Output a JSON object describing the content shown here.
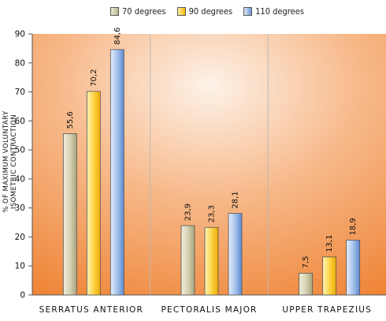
{
  "chart_data": {
    "type": "bar",
    "ylabel": "% OF MAXIMUM VOLUNTARY ISOMETRIC CONTRACTION",
    "xlabel": "",
    "ylim": [
      0,
      90
    ],
    "yticks": [
      0,
      10,
      20,
      30,
      40,
      50,
      60,
      70,
      80,
      90
    ],
    "legend_position": "top",
    "grid": false,
    "categories": [
      "SERRATUS ANTERIOR",
      "PECTORALIS MAJOR",
      "UPPER TRAPEZIUS"
    ],
    "series": [
      {
        "name": "70 degrees",
        "values": [
          55.6,
          23.9,
          7.5
        ],
        "labels": [
          "55,6",
          "23,9",
          "7,5"
        ],
        "color": "#c9c7a6"
      },
      {
        "name": "90 degrees",
        "values": [
          70.2,
          23.3,
          13.1
        ],
        "labels": [
          "70,2",
          "23,3",
          "13,1"
        ],
        "color": "#fbd24a"
      },
      {
        "name": "110 degrees",
        "values": [
          84.6,
          28.1,
          18.9
        ],
        "labels": [
          "84,6",
          "28,1",
          "18,9"
        ],
        "color": "#8fb3e6"
      }
    ]
  }
}
